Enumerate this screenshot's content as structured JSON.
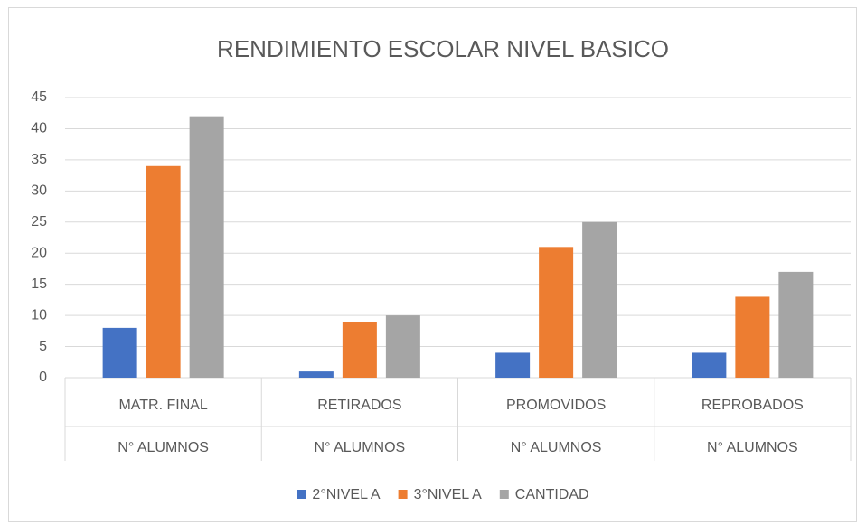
{
  "chart_data": {
    "type": "bar",
    "title": "RENDIMIENTO ESCOLAR NIVEL BASICO",
    "categories": [
      "MATR. FINAL",
      "RETIRADOS",
      "PROMOVIDOS",
      "REPROBADOS"
    ],
    "subcategories": [
      "N° ALUMNOS",
      "N° ALUMNOS",
      "N° ALUMNOS",
      "N° ALUMNOS"
    ],
    "series": [
      {
        "name": "2°NIVEL A",
        "color": "#4472c4",
        "values": [
          8,
          1,
          4,
          4
        ]
      },
      {
        "name": "3°NIVEL A",
        "color": "#ed7d31",
        "values": [
          34,
          9,
          21,
          13
        ]
      },
      {
        "name": "CANTIDAD",
        "color": "#a5a5a5",
        "values": [
          42,
          10,
          25,
          17
        ]
      }
    ],
    "ylim": [
      0,
      45
    ],
    "yticks": [
      0,
      5,
      10,
      15,
      20,
      25,
      30,
      35,
      40,
      45
    ],
    "grid": true,
    "legend": "bottom"
  }
}
